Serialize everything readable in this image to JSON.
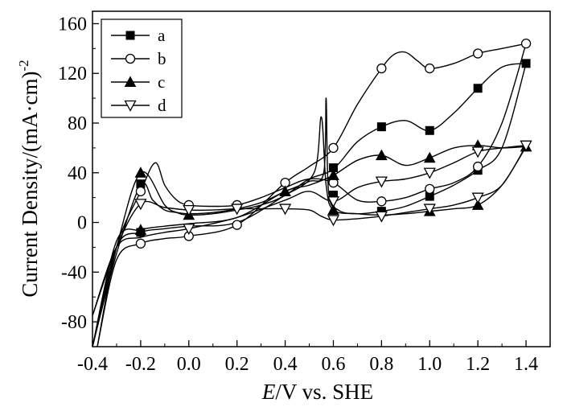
{
  "chart_data": {
    "type": "line",
    "xlabel_italic": "E",
    "xlabel_rest": "/V vs. SHE",
    "ylabel_main": "Current Density/(mA·cm)",
    "ylabel_sup": "-2",
    "xlim": [
      -0.4,
      1.5
    ],
    "ylim": [
      -100,
      170
    ],
    "xticks": [
      "-0.4",
      "-0.2",
      "0.0",
      "0.2",
      "0.4",
      "0.6",
      "0.8",
      "1.0",
      "1.2",
      "1.4"
    ],
    "yticks": [
      "-80",
      "-40",
      "0",
      "40",
      "80",
      "120",
      "160"
    ],
    "grid": false,
    "legend_position": "top-left",
    "series": [
      {
        "name": "a",
        "marker": "filled-square",
        "forward": [
          [
            -0.4,
            -100
          ],
          [
            -0.3,
            -20
          ],
          [
            -0.2,
            -8
          ],
          [
            -0.1,
            -5
          ],
          [
            0.0,
            -3
          ],
          [
            0.2,
            0
          ],
          [
            0.4,
            22
          ],
          [
            0.5,
            35
          ],
          [
            0.6,
            43
          ],
          [
            0.7,
            65
          ],
          [
            0.8,
            77
          ],
          [
            0.9,
            82
          ],
          [
            1.0,
            74
          ],
          [
            1.1,
            88
          ],
          [
            1.2,
            108
          ],
          [
            1.3,
            125
          ],
          [
            1.4,
            128
          ]
        ],
        "reverse": [
          [
            1.4,
            128
          ],
          [
            1.3,
            60
          ],
          [
            1.2,
            42
          ],
          [
            1.1,
            30
          ],
          [
            1.0,
            21
          ],
          [
            0.9,
            13
          ],
          [
            0.8,
            9
          ],
          [
            0.7,
            7
          ],
          [
            0.62,
            10
          ],
          [
            0.58,
            25
          ],
          [
            0.57,
            100
          ],
          [
            0.56,
            40
          ],
          [
            0.5,
            33
          ],
          [
            0.4,
            25
          ],
          [
            0.3,
            16
          ],
          [
            0.2,
            11
          ],
          [
            0.1,
            8
          ],
          [
            0.0,
            7
          ],
          [
            -0.05,
            8
          ],
          [
            -0.1,
            10
          ],
          [
            -0.15,
            18
          ],
          [
            -0.2,
            30
          ],
          [
            -0.3,
            -25
          ],
          [
            -0.4,
            -100
          ]
        ],
        "markers": [
          [
            -0.2,
            31
          ],
          [
            -0.2,
            -8
          ],
          [
            0.6,
            44
          ],
          [
            0.6,
            22
          ],
          [
            0.8,
            77
          ],
          [
            0.8,
            9
          ],
          [
            1.0,
            74
          ],
          [
            1.0,
            21
          ],
          [
            1.2,
            108
          ],
          [
            1.2,
            42
          ],
          [
            1.4,
            128
          ]
        ]
      },
      {
        "name": "b",
        "marker": "open-circle",
        "forward": [
          [
            -0.38,
            -100
          ],
          [
            -0.3,
            -30
          ],
          [
            -0.2,
            -17
          ],
          [
            -0.1,
            -13
          ],
          [
            0.0,
            -11
          ],
          [
            0.2,
            -2
          ],
          [
            0.4,
            32
          ],
          [
            0.5,
            45
          ],
          [
            0.6,
            60
          ],
          [
            0.7,
            95
          ],
          [
            0.8,
            124
          ],
          [
            0.85,
            135
          ],
          [
            0.9,
            137
          ],
          [
            0.95,
            130
          ],
          [
            1.0,
            124
          ],
          [
            1.1,
            128
          ],
          [
            1.2,
            136
          ],
          [
            1.3,
            140
          ],
          [
            1.4,
            144
          ]
        ],
        "reverse": [
          [
            1.4,
            144
          ],
          [
            1.3,
            80
          ],
          [
            1.2,
            45
          ],
          [
            1.1,
            32
          ],
          [
            1.0,
            27
          ],
          [
            0.9,
            20
          ],
          [
            0.8,
            17
          ],
          [
            0.7,
            18
          ],
          [
            0.6,
            32
          ],
          [
            0.5,
            35
          ],
          [
            0.4,
            28
          ],
          [
            0.3,
            20
          ],
          [
            0.2,
            14
          ],
          [
            0.1,
            13
          ],
          [
            0.0,
            14
          ],
          [
            -0.05,
            18
          ],
          [
            -0.1,
            30
          ],
          [
            -0.14,
            48
          ],
          [
            -0.2,
            25
          ],
          [
            -0.3,
            -20
          ],
          [
            -0.38,
            -100
          ]
        ],
        "markers": [
          [
            -0.2,
            25
          ],
          [
            -0.2,
            -17
          ],
          [
            0.0,
            14
          ],
          [
            0.0,
            -11
          ],
          [
            0.2,
            14
          ],
          [
            0.2,
            -2
          ],
          [
            0.4,
            32
          ],
          [
            0.6,
            60
          ],
          [
            0.6,
            32
          ],
          [
            0.8,
            124
          ],
          [
            0.8,
            17
          ],
          [
            1.0,
            124
          ],
          [
            1.0,
            27
          ],
          [
            1.2,
            136
          ],
          [
            1.2,
            45
          ],
          [
            1.4,
            144
          ]
        ]
      },
      {
        "name": "c",
        "marker": "filled-triangle-up",
        "forward": [
          [
            -0.4,
            -100
          ],
          [
            -0.3,
            -15
          ],
          [
            -0.2,
            -6
          ],
          [
            -0.1,
            -3
          ],
          [
            0.0,
            -1
          ],
          [
            0.2,
            4
          ],
          [
            0.4,
            25
          ],
          [
            0.5,
            30
          ],
          [
            0.6,
            38
          ],
          [
            0.7,
            50
          ],
          [
            0.8,
            54
          ],
          [
            0.9,
            46
          ],
          [
            1.0,
            52
          ],
          [
            1.1,
            60
          ],
          [
            1.2,
            62
          ],
          [
            1.3,
            60
          ],
          [
            1.4,
            61
          ]
        ],
        "reverse": [
          [
            1.4,
            61
          ],
          [
            1.3,
            30
          ],
          [
            1.2,
            14
          ],
          [
            1.1,
            11
          ],
          [
            1.0,
            9
          ],
          [
            0.9,
            7
          ],
          [
            0.8,
            6
          ],
          [
            0.7,
            7
          ],
          [
            0.6,
            10
          ],
          [
            0.57,
            30
          ],
          [
            0.55,
            85
          ],
          [
            0.52,
            40
          ],
          [
            0.4,
            22
          ],
          [
            0.3,
            14
          ],
          [
            0.2,
            10
          ],
          [
            0.1,
            7
          ],
          [
            0.0,
            6
          ],
          [
            -0.05,
            8
          ],
          [
            -0.1,
            14
          ],
          [
            -0.2,
            40
          ],
          [
            -0.3,
            -20
          ],
          [
            -0.4,
            -100
          ]
        ],
        "markers": [
          [
            -0.2,
            40
          ],
          [
            -0.2,
            -6
          ],
          [
            0.0,
            6
          ],
          [
            0.4,
            25
          ],
          [
            0.6,
            38
          ],
          [
            0.6,
            10
          ],
          [
            0.8,
            54
          ],
          [
            1.0,
            52
          ],
          [
            1.0,
            9
          ],
          [
            1.2,
            62
          ],
          [
            1.2,
            14
          ],
          [
            1.4,
            61
          ]
        ]
      },
      {
        "name": "d",
        "marker": "open-triangle-down",
        "forward": [
          [
            -0.4,
            -75
          ],
          [
            -0.3,
            -20
          ],
          [
            -0.2,
            -12
          ],
          [
            -0.1,
            -8
          ],
          [
            0.0,
            -5
          ],
          [
            0.2,
            4
          ],
          [
            0.4,
            18
          ],
          [
            0.5,
            25
          ],
          [
            0.6,
            17
          ],
          [
            0.7,
            28
          ],
          [
            0.8,
            33
          ],
          [
            0.9,
            35
          ],
          [
            1.0,
            40
          ],
          [
            1.1,
            48
          ],
          [
            1.2,
            57
          ],
          [
            1.3,
            60
          ],
          [
            1.4,
            62
          ]
        ],
        "reverse": [
          [
            1.4,
            62
          ],
          [
            1.3,
            30
          ],
          [
            1.2,
            20
          ],
          [
            1.1,
            14
          ],
          [
            1.0,
            11
          ],
          [
            0.9,
            8
          ],
          [
            0.8,
            5
          ],
          [
            0.7,
            3
          ],
          [
            0.6,
            2
          ],
          [
            0.55,
            5
          ],
          [
            0.5,
            10
          ],
          [
            0.4,
            11
          ],
          [
            0.3,
            11
          ],
          [
            0.2,
            11
          ],
          [
            0.1,
            10
          ],
          [
            0.0,
            10
          ],
          [
            -0.1,
            12
          ],
          [
            -0.2,
            15
          ],
          [
            -0.3,
            -20
          ],
          [
            -0.4,
            -75
          ]
        ],
        "markers": [
          [
            -0.2,
            15
          ],
          [
            0.0,
            10
          ],
          [
            0.0,
            -5
          ],
          [
            0.2,
            11
          ],
          [
            0.4,
            11
          ],
          [
            0.6,
            17
          ],
          [
            0.6,
            2
          ],
          [
            0.8,
            33
          ],
          [
            0.8,
            5
          ],
          [
            1.0,
            40
          ],
          [
            1.0,
            11
          ],
          [
            1.2,
            57
          ],
          [
            1.2,
            20
          ],
          [
            1.4,
            62
          ]
        ]
      }
    ]
  }
}
